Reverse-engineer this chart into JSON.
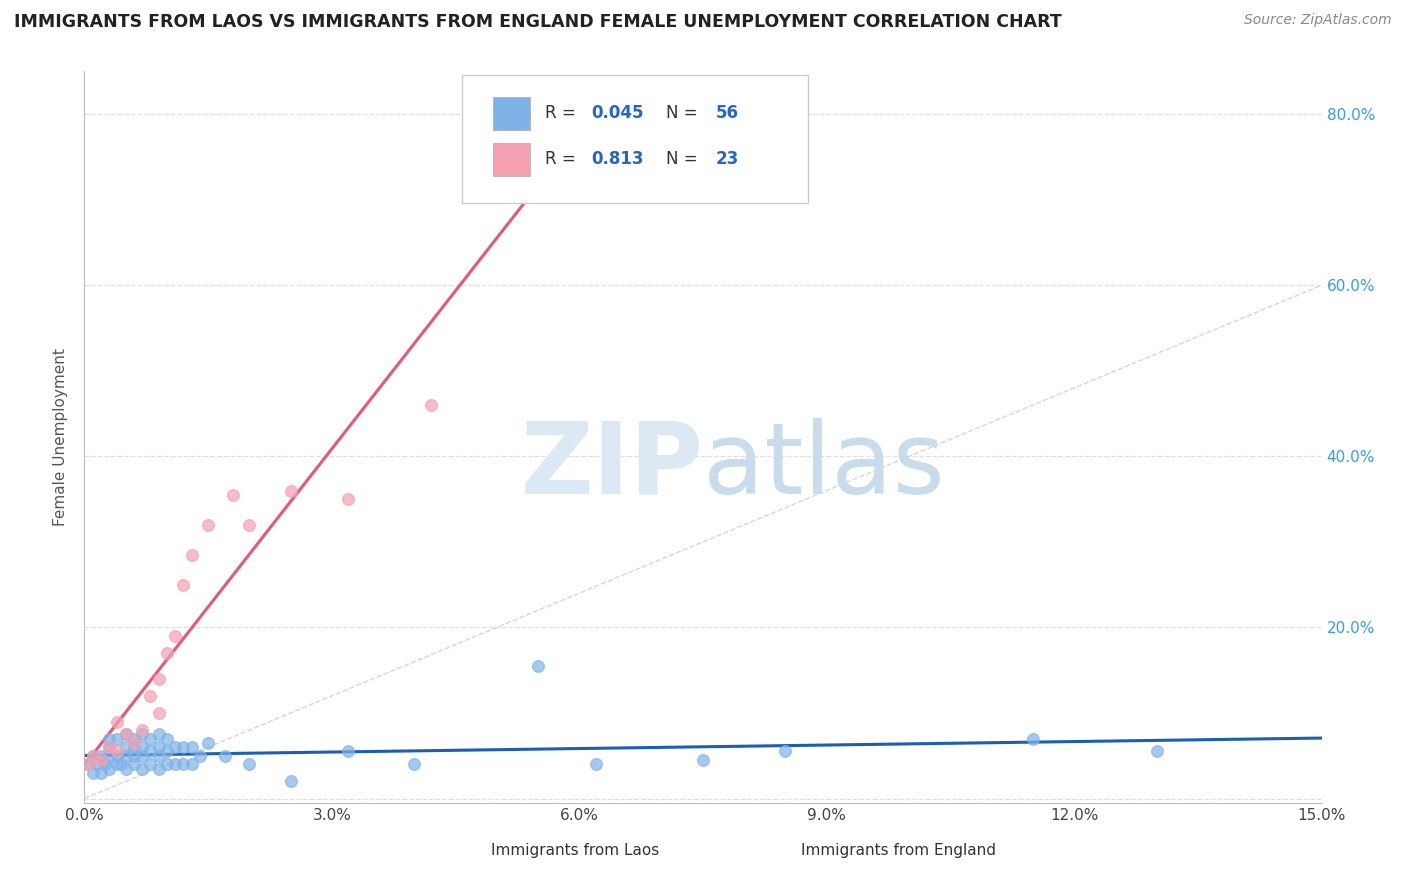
{
  "title": "IMMIGRANTS FROM LAOS VS IMMIGRANTS FROM ENGLAND FEMALE UNEMPLOYMENT CORRELATION CHART",
  "source": "Source: ZipAtlas.com",
  "ylabel": "Female Unemployment",
  "xlim": [
    0.0,
    0.15
  ],
  "ylim": [
    -0.005,
    0.85
  ],
  "xticks": [
    0.0,
    0.03,
    0.06,
    0.09,
    0.12,
    0.15
  ],
  "xtick_labels": [
    "0.0%",
    "3.0%",
    "6.0%",
    "9.0%",
    "12.0%",
    "15.0%"
  ],
  "yticks": [
    0.0,
    0.2,
    0.4,
    0.6,
    0.8
  ],
  "ytick_labels_right": [
    "",
    "20.0%",
    "40.0%",
    "60.0%",
    "80.0%"
  ],
  "laos_color": "#7fb3e8",
  "england_color": "#f4a0b0",
  "laos_R": 0.045,
  "laos_N": 56,
  "england_R": 0.813,
  "england_N": 23,
  "ref_line_color": "#cccccc",
  "laos_trend_color": "#1a5fb4",
  "england_trend_color": "#e8567a",
  "background_color": "#ffffff",
  "grid_color": "#d8d8d8",
  "laos_x": [
    0.0005,
    0.001,
    0.001,
    0.0015,
    0.002,
    0.002,
    0.0025,
    0.003,
    0.003,
    0.003,
    0.003,
    0.004,
    0.004,
    0.004,
    0.0045,
    0.005,
    0.005,
    0.005,
    0.005,
    0.006,
    0.006,
    0.006,
    0.006,
    0.007,
    0.007,
    0.007,
    0.007,
    0.008,
    0.008,
    0.008,
    0.009,
    0.009,
    0.009,
    0.009,
    0.01,
    0.01,
    0.01,
    0.011,
    0.011,
    0.012,
    0.012,
    0.013,
    0.013,
    0.014,
    0.015,
    0.017,
    0.02,
    0.025,
    0.032,
    0.04,
    0.055,
    0.062,
    0.075,
    0.085,
    0.115,
    0.13
  ],
  "laos_y": [
    0.04,
    0.03,
    0.05,
    0.04,
    0.03,
    0.05,
    0.04,
    0.035,
    0.05,
    0.06,
    0.07,
    0.04,
    0.05,
    0.07,
    0.04,
    0.035,
    0.05,
    0.06,
    0.075,
    0.04,
    0.05,
    0.06,
    0.07,
    0.035,
    0.05,
    0.06,
    0.075,
    0.04,
    0.055,
    0.07,
    0.035,
    0.05,
    0.06,
    0.075,
    0.04,
    0.055,
    0.07,
    0.04,
    0.06,
    0.04,
    0.06,
    0.04,
    0.06,
    0.05,
    0.065,
    0.05,
    0.04,
    0.02,
    0.055,
    0.04,
    0.155,
    0.04,
    0.045,
    0.055,
    0.07,
    0.055
  ],
  "england_x": [
    0.0005,
    0.001,
    0.002,
    0.003,
    0.004,
    0.004,
    0.005,
    0.006,
    0.007,
    0.008,
    0.009,
    0.009,
    0.01,
    0.011,
    0.012,
    0.013,
    0.015,
    0.018,
    0.02,
    0.025,
    0.032,
    0.042,
    0.052
  ],
  "england_y": [
    0.04,
    0.05,
    0.045,
    0.06,
    0.055,
    0.09,
    0.075,
    0.065,
    0.08,
    0.12,
    0.1,
    0.14,
    0.17,
    0.19,
    0.25,
    0.285,
    0.32,
    0.355,
    0.32,
    0.36,
    0.35,
    0.46,
    0.72
  ]
}
